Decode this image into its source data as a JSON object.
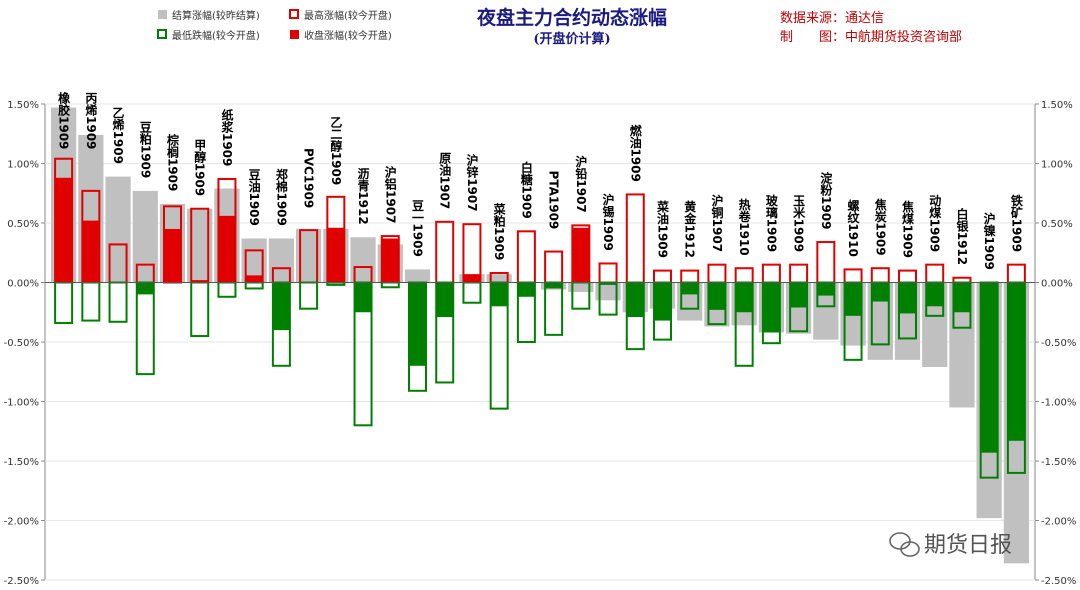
{
  "header": {
    "title": "夜盘主力合约动态涨幅",
    "subtitle": "(开盘价计算)",
    "source_line1": "数据来源：通达信",
    "source_line2": "制　　图：中航期货投资咨询部"
  },
  "legend": {
    "settle": "结算涨幅(较昨结算)",
    "high": "最高涨幅(较今开盘)",
    "low": "最低跌幅(较今开盘)",
    "close": "收盘涨幅(较今开盘)"
  },
  "watermark": "期货日报",
  "colors": {
    "settle": "#c0c0c0",
    "high": "#e00000",
    "low": "#008000",
    "close_up": "#e00000",
    "close_down": "#008000"
  },
  "chart_data": {
    "type": "bar",
    "ylim": [
      -2.5,
      1.5
    ],
    "yticks": [
      "1.50%",
      "1.00%",
      "0.50%",
      "0.00%",
      "-0.50%",
      "-1.00%",
      "-1.50%",
      "-2.00%",
      "-2.50%"
    ],
    "categories": [
      "橡胶1909",
      "丙烯1909",
      "乙烯1909",
      "豆粕1909",
      "棕榈1909",
      "甲醇1909",
      "纸浆1909",
      "豆油1909",
      "郑棉1909",
      "PVC1909",
      "乙二醇1909",
      "沥青1912",
      "沪铝1907",
      "豆一1909",
      "原油1907",
      "沪锌1907",
      "菜粕1909",
      "白糖1909",
      "PTA1909",
      "沪铅1907",
      "沪锡1909",
      "燃油1909",
      "菜油1909",
      "黄金1912",
      "沪铜1907",
      "热卷1910",
      "玻璃1909",
      "玉米1909",
      "淀粉1909",
      "螺纹1910",
      "焦炭1909",
      "焦煤1909",
      "动煤1909",
      "白银1912",
      "沪镍1909",
      "铁矿1909"
    ],
    "series": [
      {
        "name": "结算涨幅(较昨结算)",
        "values": [
          1.47,
          1.24,
          0.89,
          0.77,
          0.66,
          0.62,
          0.79,
          0.37,
          0.37,
          0.45,
          0.45,
          0.38,
          0.32,
          0.11,
          0.0,
          0.07,
          0.07,
          0.0,
          -0.06,
          -0.08,
          -0.15,
          -0.25,
          -0.22,
          -0.32,
          -0.37,
          -0.36,
          -0.42,
          -0.43,
          -0.48,
          -0.53,
          -0.65,
          -0.65,
          -0.71,
          -1.05,
          -1.98,
          -2.36
        ]
      },
      {
        "name": "最高涨幅(较今开盘)",
        "values": [
          1.04,
          0.77,
          0.32,
          0.15,
          0.64,
          0.62,
          0.87,
          0.27,
          0.12,
          0.44,
          0.72,
          0.13,
          0.39,
          0.0,
          0.51,
          0.49,
          0.08,
          0.43,
          0.26,
          0.48,
          0.16,
          0.74,
          0.1,
          0.1,
          0.15,
          0.12,
          0.15,
          0.15,
          0.34,
          0.11,
          0.12,
          0.1,
          0.15,
          0.04,
          0.0,
          0.15
        ]
      },
      {
        "name": "最低跌幅(较今开盘)",
        "values": [
          -0.34,
          -0.32,
          -0.33,
          -0.77,
          0.0,
          -0.45,
          -0.12,
          -0.05,
          -0.7,
          -0.22,
          -0.02,
          -1.2,
          -0.04,
          -0.91,
          -0.84,
          -0.17,
          -1.06,
          -0.5,
          -0.44,
          -0.22,
          -0.27,
          -0.56,
          -0.48,
          -0.22,
          -0.35,
          -0.7,
          -0.51,
          -0.41,
          -0.2,
          -0.65,
          -0.52,
          -0.47,
          -0.28,
          -0.38,
          -1.64,
          -1.6
        ]
      },
      {
        "name": "收盘涨幅(较今开盘)",
        "values": [
          0.88,
          0.52,
          0.0,
          -0.1,
          0.45,
          0.02,
          0.56,
          0.06,
          -0.4,
          0.0,
          0.46,
          -0.25,
          0.37,
          -0.7,
          -0.29,
          0.07,
          -0.2,
          -0.12,
          -0.05,
          0.46,
          -0.02,
          -0.29,
          -0.32,
          -0.1,
          -0.23,
          -0.25,
          -0.42,
          -0.21,
          -0.11,
          -0.28,
          -0.16,
          -0.26,
          -0.2,
          -0.25,
          -1.43,
          -1.33
        ]
      }
    ]
  }
}
